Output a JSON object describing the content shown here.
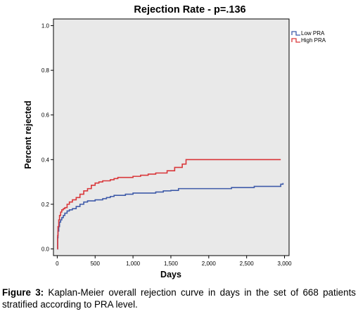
{
  "chart_data": {
    "type": "line",
    "title": "Rejection Rate - p=.136",
    "xlabel": "Days",
    "ylabel": "Percent rejected",
    "xlim": [
      -50,
      3060
    ],
    "ylim": [
      -0.03,
      1.03
    ],
    "x_ticks": [
      0,
      500,
      1000,
      1500,
      2000,
      2500,
      3000
    ],
    "x_tick_labels": [
      "0",
      "500",
      "1,000",
      "1,500",
      "2,000",
      "2,500",
      "3,000"
    ],
    "y_ticks": [
      0.0,
      0.2,
      0.4,
      0.6,
      0.8,
      1.0
    ],
    "y_tick_labels": [
      "0.0",
      "0.2",
      "0.4",
      "0.6",
      "0.8",
      "1.0"
    ],
    "grid": false,
    "legend_position": "top-right",
    "plot_background": "#e9e9e9",
    "series": [
      {
        "name": "Low PRA",
        "color": "#3f5ba9",
        "step": true,
        "x": [
          0,
          5,
          10,
          20,
          30,
          45,
          60,
          80,
          100,
          130,
          160,
          200,
          250,
          300,
          350,
          400,
          450,
          500,
          550,
          600,
          650,
          700,
          750,
          800,
          900,
          1000,
          1200,
          1300,
          1400,
          1500,
          1600,
          2000,
          2300,
          2600,
          2950,
          2980
        ],
        "y": [
          0.0,
          0.05,
          0.08,
          0.1,
          0.12,
          0.13,
          0.14,
          0.15,
          0.16,
          0.17,
          0.175,
          0.18,
          0.19,
          0.2,
          0.21,
          0.215,
          0.215,
          0.22,
          0.22,
          0.225,
          0.23,
          0.235,
          0.24,
          0.24,
          0.245,
          0.25,
          0.25,
          0.255,
          0.26,
          0.262,
          0.27,
          0.27,
          0.275,
          0.28,
          0.29,
          0.295
        ]
      },
      {
        "name": "High PRA",
        "color": "#d9373a",
        "step": true,
        "x": [
          0,
          5,
          10,
          20,
          30,
          45,
          60,
          80,
          100,
          130,
          160,
          200,
          250,
          300,
          350,
          400,
          450,
          500,
          550,
          600,
          700,
          750,
          800,
          900,
          1000,
          1100,
          1200,
          1300,
          1450,
          1550,
          1650,
          1700,
          2000,
          2950
        ],
        "y": [
          0.0,
          0.06,
          0.1,
          0.13,
          0.15,
          0.165,
          0.175,
          0.18,
          0.185,
          0.2,
          0.21,
          0.22,
          0.23,
          0.245,
          0.26,
          0.27,
          0.285,
          0.295,
          0.3,
          0.305,
          0.31,
          0.315,
          0.32,
          0.32,
          0.325,
          0.33,
          0.335,
          0.34,
          0.35,
          0.365,
          0.38,
          0.4,
          0.4,
          0.4
        ]
      }
    ]
  },
  "caption": {
    "figure_label": "Figure 3:",
    "text": " Kaplan-Meier overall rejection curve in days in the set of 668 patients stratified according to PRA level."
  }
}
